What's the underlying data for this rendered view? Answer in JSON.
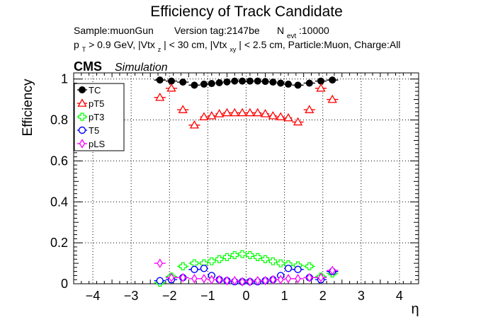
{
  "chart_data": {
    "type": "scatter",
    "title": "Efficiency of Track Candidate",
    "subtitle_line1": {
      "sample": "Sample:muonGun",
      "version": "Version tag:2147be",
      "nevt_main": "N",
      "nevt_sub": "evt",
      "nevt_value": ":10000"
    },
    "subtitle_line2": {
      "p": "p",
      "p_sub": "T",
      "a": " > 0.9 GeV, |Vtx",
      "a_sub": "z",
      "b": "| < 30 cm, |Vtx",
      "b_sub": "xy",
      "c": "| < 2.5 cm, Particle:Muon, Charge:All"
    },
    "cms_label": "CMS",
    "cms_sublabel": "Simulation",
    "xlabel": "η",
    "ylabel": "Efficiency",
    "xlim": [
      -4.5,
      4.5
    ],
    "ylim": [
      0,
      1.03
    ],
    "xticks": [
      -4,
      -3,
      -2,
      -1,
      0,
      1,
      2,
      3,
      4
    ],
    "xtick_labels": [
      "−4",
      "−3",
      "−2",
      "−1",
      "0",
      "1",
      "2",
      "3",
      "4"
    ],
    "yticks": [
      0,
      0.2,
      0.4,
      0.6,
      0.8,
      1
    ],
    "ytick_labels": [
      "0",
      "0.2",
      "0.4",
      "0.6",
      "0.8",
      "1"
    ],
    "grid": true,
    "legend_placement": "top-left",
    "bin_edges": [
      -2.4,
      -2.1,
      -1.8,
      -1.5,
      -1.2,
      -1.0,
      -0.8,
      -0.6,
      -0.4,
      -0.2,
      0.0,
      0.2,
      0.4,
      0.6,
      0.8,
      1.0,
      1.2,
      1.5,
      1.8,
      2.1,
      2.4
    ],
    "series": [
      {
        "name": "TC",
        "color": "#000000",
        "marker": "filled-circle",
        "values": [
          0.995,
          0.99,
          0.985,
          0.97,
          0.975,
          0.978,
          0.982,
          0.986,
          0.99,
          0.99,
          0.99,
          0.99,
          0.988,
          0.985,
          0.98,
          0.975,
          0.97,
          0.98,
          0.99,
          0.995
        ]
      },
      {
        "name": "pT5",
        "color": "#ff0000",
        "marker": "open-triangle",
        "values": [
          0.91,
          0.955,
          0.85,
          0.775,
          0.815,
          0.82,
          0.83,
          0.835,
          0.835,
          0.835,
          0.835,
          0.835,
          0.83,
          0.82,
          0.815,
          0.81,
          0.79,
          0.85,
          0.955,
          0.9
        ]
      },
      {
        "name": "pT3",
        "color": "#00ff00",
        "marker": "open-cross",
        "values": [
          0.005,
          0.035,
          0.085,
          0.1,
          0.1,
          0.11,
          0.12,
          0.13,
          0.14,
          0.145,
          0.14,
          0.13,
          0.12,
          0.11,
          0.1,
          0.095,
          0.09,
          0.085,
          0.035,
          0.05
        ]
      },
      {
        "name": "T5",
        "color": "#0000ff",
        "marker": "open-circle",
        "values": [
          0.015,
          0.02,
          0.03,
          0.07,
          0.075,
          0.04,
          0.02,
          0.015,
          0.01,
          0.01,
          0.01,
          0.01,
          0.015,
          0.02,
          0.04,
          0.075,
          0.07,
          0.03,
          0.02,
          0.06
        ]
      },
      {
        "name": "pLS",
        "color": "#ff00ff",
        "marker": "open-diamond",
        "values": [
          0.1,
          0.03,
          0.03,
          0.025,
          0.025,
          0.02,
          0.02,
          0.015,
          0.015,
          0.01,
          0.01,
          0.015,
          0.015,
          0.02,
          0.02,
          0.025,
          0.025,
          0.03,
          0.03,
          0.065
        ]
      }
    ]
  }
}
